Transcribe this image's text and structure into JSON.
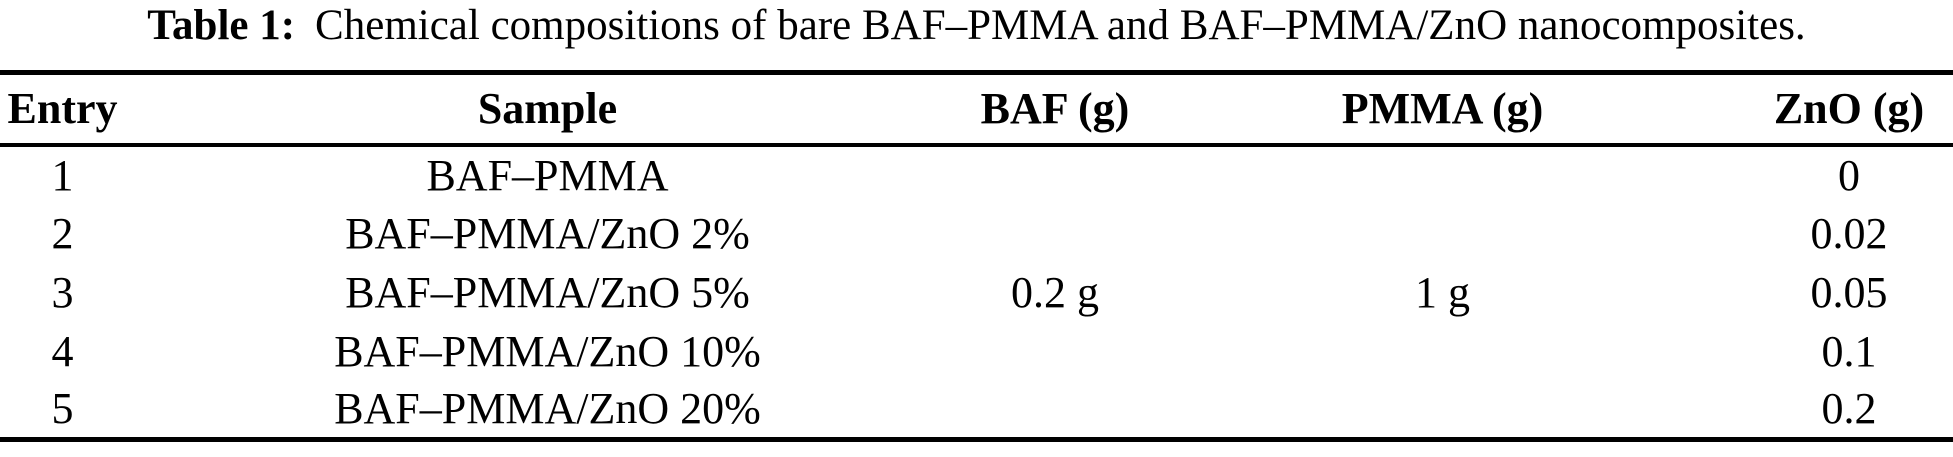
{
  "caption": {
    "label": "Table 1:",
    "text": "Chemical compositions of bare BAF–PMMA and BAF–PMMA/ZnO nanocomposites."
  },
  "table": {
    "columns": [
      "Entry",
      "Sample",
      "BAF (g)",
      "PMMA (g)",
      "ZnO (g)"
    ],
    "rows": [
      {
        "entry": "1",
        "sample": "BAF–PMMA",
        "baf": "",
        "pmma": "",
        "zno": "0"
      },
      {
        "entry": "2",
        "sample": "BAF–PMMA/ZnO 2%",
        "baf": "",
        "pmma": "",
        "zno": "0.02"
      },
      {
        "entry": "3",
        "sample": "BAF–PMMA/ZnO 5%",
        "baf": "0.2 g",
        "pmma": "1 g",
        "zno": "0.05"
      },
      {
        "entry": "4",
        "sample": "BAF–PMMA/ZnO 10%",
        "baf": "",
        "pmma": "",
        "zno": "0.1"
      },
      {
        "entry": "5",
        "sample": "BAF–PMMA/ZnO 20%",
        "baf": "",
        "pmma": "",
        "zno": "0.2"
      }
    ]
  },
  "chart_data": {
    "type": "table",
    "title": "Table 1: Chemical compositions of bare BAF–PMMA and BAF–PMMA/ZnO nanocomposites.",
    "columns": [
      "Entry",
      "Sample",
      "BAF (g)",
      "PMMA (g)",
      "ZnO (g)"
    ],
    "rows": [
      [
        "1",
        "BAF–PMMA",
        "",
        "",
        "0"
      ],
      [
        "2",
        "BAF–PMMA/ZnO 2%",
        "",
        "",
        "0.02"
      ],
      [
        "3",
        "BAF–PMMA/ZnO 5%",
        "0.2 g",
        "1 g",
        "0.05"
      ],
      [
        "4",
        "BAF–PMMA/ZnO 10%",
        "",
        "",
        "0.1"
      ],
      [
        "5",
        "BAF–PMMA/ZnO 20%",
        "",
        "",
        "0.2"
      ]
    ]
  },
  "colors": {
    "text": "#000000",
    "background": "#ffffff",
    "rule": "#000000"
  }
}
